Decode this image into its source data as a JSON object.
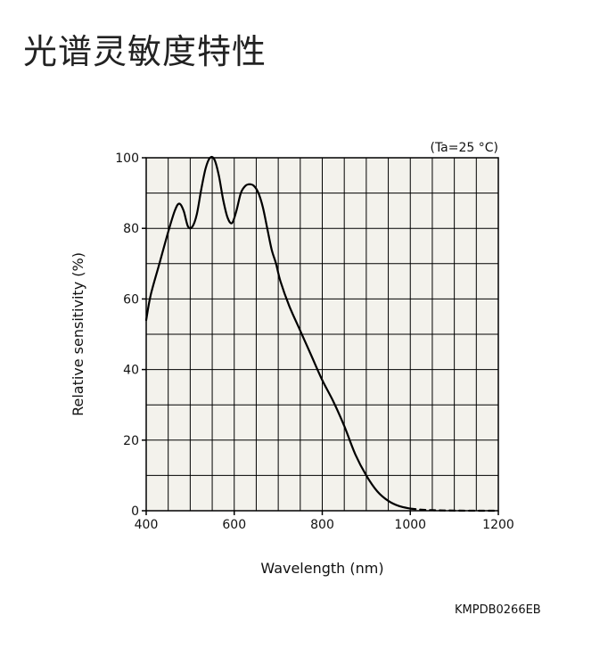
{
  "page": {
    "title": "光谱灵敏度特性",
    "code": "KMPDB0266EB"
  },
  "chart_data": {
    "type": "line",
    "xlabel": "Wavelength (nm)",
    "ylabel": "Relative sensitivity (%)",
    "condition": "(Ta=25 °C)",
    "xlim": [
      400,
      1200
    ],
    "ylim": [
      0,
      100
    ],
    "x_ticks": [
      400,
      600,
      800,
      1000,
      1200
    ],
    "x_tick_labels": [
      "400",
      "600",
      "800",
      "1000",
      "1200"
    ],
    "y_ticks": [
      0,
      20,
      40,
      60,
      80,
      100
    ],
    "y_tick_labels": [
      "0",
      "20",
      "40",
      "60",
      "80",
      "100"
    ],
    "grid": true,
    "plot_background": "#f3f2ec",
    "series": [
      {
        "style": "solid",
        "color": "#000000",
        "x": [
          400,
          410,
          430,
          450,
          465,
          475,
          485,
          495,
          505,
          515,
          525,
          535,
          545,
          555,
          565,
          575,
          585,
          595,
          605,
          615,
          625,
          635,
          645,
          655,
          665,
          675,
          685,
          695,
          705,
          725,
          750,
          775,
          800,
          825,
          850,
          875,
          900,
          925,
          950,
          975,
          1000
        ],
        "y": [
          54,
          61,
          70,
          79,
          85,
          87,
          85,
          80.5,
          80.5,
          84,
          91,
          97,
          100,
          99.5,
          95,
          88,
          83,
          81.5,
          85,
          90,
          92,
          92.5,
          92,
          90,
          86,
          80,
          74,
          70,
          65,
          58,
          51,
          44,
          37,
          31,
          24,
          16,
          10,
          5.5,
          2.8,
          1.3,
          0.6
        ]
      },
      {
        "style": "dashed",
        "color": "#000000",
        "x": [
          1000,
          1025,
          1050,
          1075,
          1100,
          1125,
          1150,
          1175,
          1200
        ],
        "y": [
          0.6,
          0.3,
          0.15,
          0.08,
          0.04,
          0.02,
          0.01,
          0.005,
          0
        ]
      }
    ]
  }
}
